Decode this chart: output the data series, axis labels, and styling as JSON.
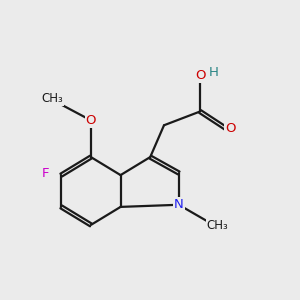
{
  "background_color": "#ebebeb",
  "bond_color": "#1a1a1a",
  "bond_width": 1.6,
  "atom_colors": {
    "C": "#1a1a1a",
    "N": "#2020ee",
    "O": "#cc0000",
    "F": "#cc00cc",
    "H": "#2a8585"
  },
  "scale": 1.08,
  "ox": 1.3,
  "oy": 2.6
}
